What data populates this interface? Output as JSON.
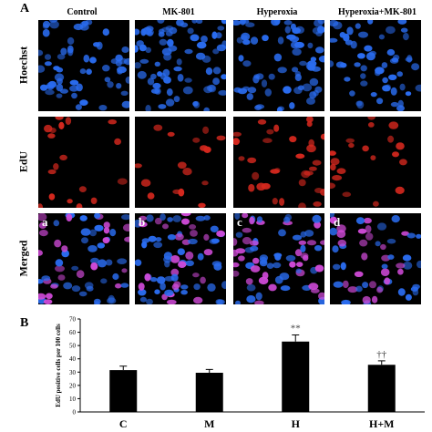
{
  "figure": {
    "panel_a_label": "A",
    "panel_b_label": "B",
    "columns": [
      "Control",
      "MK-801",
      "Hyperoxia",
      "Hyperoxia+MK-801"
    ],
    "rows": [
      {
        "label": "Hoechst",
        "stain": "hoechst"
      },
      {
        "label": "EdU",
        "stain": "edu"
      },
      {
        "label": "Merged",
        "stain": "merged"
      }
    ],
    "merged_sublabels": [
      "a",
      "b",
      "c",
      "d"
    ],
    "colors": {
      "hoechst": "#2a6cf0",
      "edu": "#d6281e",
      "merged_pink": "#d04ad8"
    }
  },
  "chart_data": {
    "type": "bar",
    "categories": [
      "C",
      "M",
      "H",
      "H+M"
    ],
    "values": [
      31.5,
      29.5,
      53,
      35.5
    ],
    "errors": [
      3,
      2.5,
      5,
      3
    ],
    "annotations": [
      "",
      "",
      "**",
      "††"
    ],
    "ylabel": "EdU positive cells per 100 cells",
    "ylim": [
      0,
      70
    ],
    "yticks": [
      0,
      10,
      20,
      30,
      40,
      50,
      60,
      70
    ],
    "bar_color": "#000000",
    "grid": false
  }
}
